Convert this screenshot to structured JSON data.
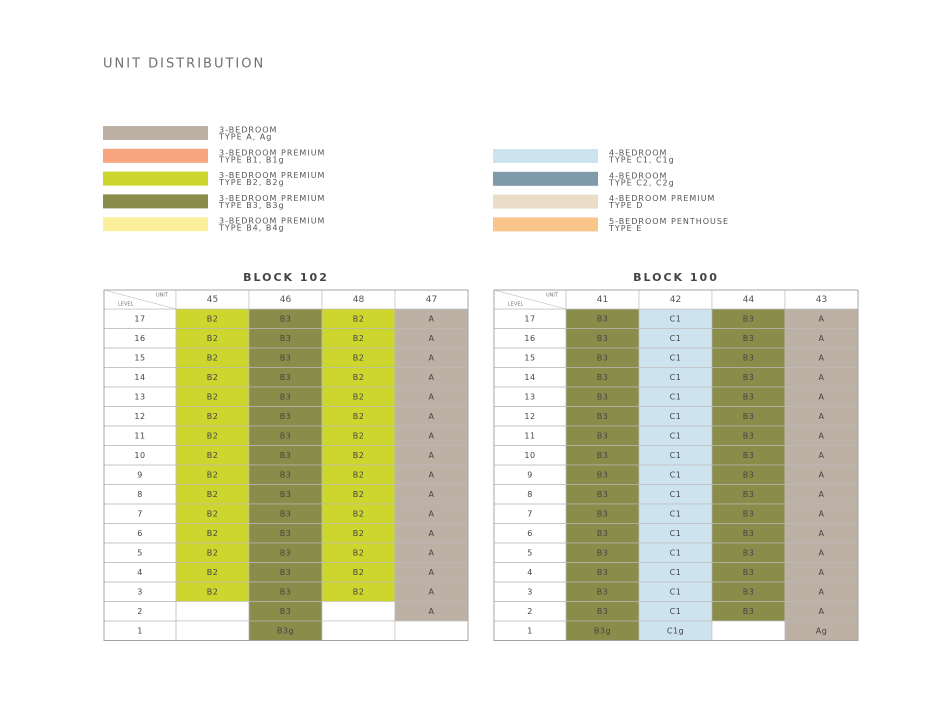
{
  "header": {
    "title": "UNIT DISTRIBUTION"
  },
  "legend": {
    "left": [
      {
        "name": "3-BEDROOM",
        "types": "TYPE A, Ag",
        "color": "#bdb0a5"
      },
      {
        "name": "3-BEDROOM PREMIUM",
        "types": "TYPE B1, B1g",
        "color": "#f6a57f"
      },
      {
        "name": "3-BEDROOM PREMIUM",
        "types": "TYPE B2, B2g",
        "color": "#cdd62c"
      },
      {
        "name": "3-BEDROOM PREMIUM",
        "types": "TYPE B3, B3g",
        "color": "#8a8d4a"
      },
      {
        "name": "3-BEDROOM PREMIUM",
        "types": "TYPE B4, B4g",
        "color": "#fbef9c"
      }
    ],
    "right": [
      {
        "name": "4-BEDROOM",
        "types": "TYPE C1, C1g",
        "color": "#cde3ee"
      },
      {
        "name": "4-BEDROOM",
        "types": "TYPE C2, C2g",
        "color": "#7f9aa8"
      },
      {
        "name": "4-BEDROOM PREMIUM",
        "types": "TYPE D",
        "color": "#eaddc8"
      },
      {
        "name": "5-BEDROOM PENTHOUSE",
        "types": "TYPE E",
        "color": "#f9c58b"
      }
    ]
  },
  "blocks": [
    {
      "title": "BLOCK 102",
      "corner_top": "UNIT",
      "corner_bottom": "LEVEL",
      "units": [
        "45",
        "46",
        "48",
        "47"
      ],
      "rows": [
        {
          "level": "17",
          "cells": [
            [
              "B2",
              "#cdd62c"
            ],
            [
              "B3",
              "#8a8d4a"
            ],
            [
              "B2",
              "#cdd62c"
            ],
            [
              "A",
              "#bdb0a5"
            ]
          ]
        },
        {
          "level": "16",
          "cells": [
            [
              "B2",
              "#cdd62c"
            ],
            [
              "B3",
              "#8a8d4a"
            ],
            [
              "B2",
              "#cdd62c"
            ],
            [
              "A",
              "#bdb0a5"
            ]
          ]
        },
        {
          "level": "15",
          "cells": [
            [
              "B2",
              "#cdd62c"
            ],
            [
              "B3",
              "#8a8d4a"
            ],
            [
              "B2",
              "#cdd62c"
            ],
            [
              "A",
              "#bdb0a5"
            ]
          ]
        },
        {
          "level": "14",
          "cells": [
            [
              "B2",
              "#cdd62c"
            ],
            [
              "B3",
              "#8a8d4a"
            ],
            [
              "B2",
              "#cdd62c"
            ],
            [
              "A",
              "#bdb0a5"
            ]
          ]
        },
        {
          "level": "13",
          "cells": [
            [
              "B2",
              "#cdd62c"
            ],
            [
              "B3",
              "#8a8d4a"
            ],
            [
              "B2",
              "#cdd62c"
            ],
            [
              "A",
              "#bdb0a5"
            ]
          ]
        },
        {
          "level": "12",
          "cells": [
            [
              "B2",
              "#cdd62c"
            ],
            [
              "B3",
              "#8a8d4a"
            ],
            [
              "B2",
              "#cdd62c"
            ],
            [
              "A",
              "#bdb0a5"
            ]
          ]
        },
        {
          "level": "11",
          "cells": [
            [
              "B2",
              "#cdd62c"
            ],
            [
              "B3",
              "#8a8d4a"
            ],
            [
              "B2",
              "#cdd62c"
            ],
            [
              "A",
              "#bdb0a5"
            ]
          ]
        },
        {
          "level": "10",
          "cells": [
            [
              "B2",
              "#cdd62c"
            ],
            [
              "B3",
              "#8a8d4a"
            ],
            [
              "B2",
              "#cdd62c"
            ],
            [
              "A",
              "#bdb0a5"
            ]
          ]
        },
        {
          "level": "9",
          "cells": [
            [
              "B2",
              "#cdd62c"
            ],
            [
              "B3",
              "#8a8d4a"
            ],
            [
              "B2",
              "#cdd62c"
            ],
            [
              "A",
              "#bdb0a5"
            ]
          ]
        },
        {
          "level": "8",
          "cells": [
            [
              "B2",
              "#cdd62c"
            ],
            [
              "B3",
              "#8a8d4a"
            ],
            [
              "B2",
              "#cdd62c"
            ],
            [
              "A",
              "#bdb0a5"
            ]
          ]
        },
        {
          "level": "7",
          "cells": [
            [
              "B2",
              "#cdd62c"
            ],
            [
              "B3",
              "#8a8d4a"
            ],
            [
              "B2",
              "#cdd62c"
            ],
            [
              "A",
              "#bdb0a5"
            ]
          ]
        },
        {
          "level": "6",
          "cells": [
            [
              "B2",
              "#cdd62c"
            ],
            [
              "B3",
              "#8a8d4a"
            ],
            [
              "B2",
              "#cdd62c"
            ],
            [
              "A",
              "#bdb0a5"
            ]
          ]
        },
        {
          "level": "5",
          "cells": [
            [
              "B2",
              "#cdd62c"
            ],
            [
              "B3",
              "#8a8d4a"
            ],
            [
              "B2",
              "#cdd62c"
            ],
            [
              "A",
              "#bdb0a5"
            ]
          ]
        },
        {
          "level": "4",
          "cells": [
            [
              "B2",
              "#cdd62c"
            ],
            [
              "B3",
              "#8a8d4a"
            ],
            [
              "B2",
              "#cdd62c"
            ],
            [
              "A",
              "#bdb0a5"
            ]
          ]
        },
        {
          "level": "3",
          "cells": [
            [
              "B2",
              "#cdd62c"
            ],
            [
              "B3",
              "#8a8d4a"
            ],
            [
              "B2",
              "#cdd62c"
            ],
            [
              "A",
              "#bdb0a5"
            ]
          ]
        },
        {
          "level": "2",
          "cells": [
            [
              null,
              null
            ],
            [
              "B3",
              "#8a8d4a"
            ],
            [
              null,
              null
            ],
            [
              "A",
              "#bdb0a5"
            ]
          ]
        },
        {
          "level": "1",
          "cells": [
            [
              null,
              null
            ],
            [
              "B3g",
              "#8a8d4a"
            ],
            [
              null,
              null
            ],
            [
              null,
              null
            ]
          ]
        }
      ]
    },
    {
      "title": "BLOCK 100",
      "corner_top": "UNIT",
      "corner_bottom": "LEVEL",
      "units": [
        "41",
        "42",
        "44",
        "43"
      ],
      "rows": [
        {
          "level": "17",
          "cells": [
            [
              "B3",
              "#8a8d4a"
            ],
            [
              "C1",
              "#cde3ee"
            ],
            [
              "B3",
              "#8a8d4a"
            ],
            [
              "A",
              "#bdb0a5"
            ]
          ]
        },
        {
          "level": "16",
          "cells": [
            [
              "B3",
              "#8a8d4a"
            ],
            [
              "C1",
              "#cde3ee"
            ],
            [
              "B3",
              "#8a8d4a"
            ],
            [
              "A",
              "#bdb0a5"
            ]
          ]
        },
        {
          "level": "15",
          "cells": [
            [
              "B3",
              "#8a8d4a"
            ],
            [
              "C1",
              "#cde3ee"
            ],
            [
              "B3",
              "#8a8d4a"
            ],
            [
              "A",
              "#bdb0a5"
            ]
          ]
        },
        {
          "level": "14",
          "cells": [
            [
              "B3",
              "#8a8d4a"
            ],
            [
              "C1",
              "#cde3ee"
            ],
            [
              "B3",
              "#8a8d4a"
            ],
            [
              "A",
              "#bdb0a5"
            ]
          ]
        },
        {
          "level": "13",
          "cells": [
            [
              "B3",
              "#8a8d4a"
            ],
            [
              "C1",
              "#cde3ee"
            ],
            [
              "B3",
              "#8a8d4a"
            ],
            [
              "A",
              "#bdb0a5"
            ]
          ]
        },
        {
          "level": "12",
          "cells": [
            [
              "B3",
              "#8a8d4a"
            ],
            [
              "C1",
              "#cde3ee"
            ],
            [
              "B3",
              "#8a8d4a"
            ],
            [
              "A",
              "#bdb0a5"
            ]
          ]
        },
        {
          "level": "11",
          "cells": [
            [
              "B3",
              "#8a8d4a"
            ],
            [
              "C1",
              "#cde3ee"
            ],
            [
              "B3",
              "#8a8d4a"
            ],
            [
              "A",
              "#bdb0a5"
            ]
          ]
        },
        {
          "level": "10",
          "cells": [
            [
              "B3",
              "#8a8d4a"
            ],
            [
              "C1",
              "#cde3ee"
            ],
            [
              "B3",
              "#8a8d4a"
            ],
            [
              "A",
              "#bdb0a5"
            ]
          ]
        },
        {
          "level": "9",
          "cells": [
            [
              "B3",
              "#8a8d4a"
            ],
            [
              "C1",
              "#cde3ee"
            ],
            [
              "B3",
              "#8a8d4a"
            ],
            [
              "A",
              "#bdb0a5"
            ]
          ]
        },
        {
          "level": "8",
          "cells": [
            [
              "B3",
              "#8a8d4a"
            ],
            [
              "C1",
              "#cde3ee"
            ],
            [
              "B3",
              "#8a8d4a"
            ],
            [
              "A",
              "#bdb0a5"
            ]
          ]
        },
        {
          "level": "7",
          "cells": [
            [
              "B3",
              "#8a8d4a"
            ],
            [
              "C1",
              "#cde3ee"
            ],
            [
              "B3",
              "#8a8d4a"
            ],
            [
              "A",
              "#bdb0a5"
            ]
          ]
        },
        {
          "level": "6",
          "cells": [
            [
              "B3",
              "#8a8d4a"
            ],
            [
              "C1",
              "#cde3ee"
            ],
            [
              "B3",
              "#8a8d4a"
            ],
            [
              "A",
              "#bdb0a5"
            ]
          ]
        },
        {
          "level": "5",
          "cells": [
            [
              "B3",
              "#8a8d4a"
            ],
            [
              "C1",
              "#cde3ee"
            ],
            [
              "B3",
              "#8a8d4a"
            ],
            [
              "A",
              "#bdb0a5"
            ]
          ]
        },
        {
          "level": "4",
          "cells": [
            [
              "B3",
              "#8a8d4a"
            ],
            [
              "C1",
              "#cde3ee"
            ],
            [
              "B3",
              "#8a8d4a"
            ],
            [
              "A",
              "#bdb0a5"
            ]
          ]
        },
        {
          "level": "3",
          "cells": [
            [
              "B3",
              "#8a8d4a"
            ],
            [
              "C1",
              "#cde3ee"
            ],
            [
              "B3",
              "#8a8d4a"
            ],
            [
              "A",
              "#bdb0a5"
            ]
          ]
        },
        {
          "level": "2",
          "cells": [
            [
              "B3",
              "#8a8d4a"
            ],
            [
              "C1",
              "#cde3ee"
            ],
            [
              "B3",
              "#8a8d4a"
            ],
            [
              "A",
              "#bdb0a5"
            ]
          ]
        },
        {
          "level": "1",
          "cells": [
            [
              "B3g",
              "#8a8d4a"
            ],
            [
              "C1g",
              "#cde3ee"
            ],
            [
              null,
              null
            ],
            [
              "Ag",
              "#bdb0a5"
            ]
          ]
        }
      ]
    }
  ]
}
